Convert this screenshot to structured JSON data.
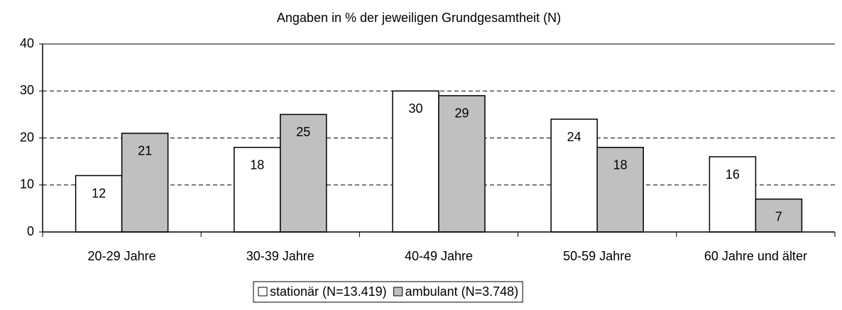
{
  "chart_data": {
    "type": "bar",
    "title": "Angaben in % der jeweiligen Grundgesamtheit (N)",
    "categories": [
      "20-29 Jahre",
      "30-39 Jahre",
      "40-49 Jahre",
      "50-59 Jahre",
      "60 Jahre und älter"
    ],
    "series": [
      {
        "name": "stationär (N=13.419)",
        "color": "#ffffff",
        "values": [
          12,
          18,
          30,
          24,
          16
        ]
      },
      {
        "name": "ambulant (N=3.748)",
        "color": "#c0c0c0",
        "values": [
          21,
          25,
          29,
          18,
          7
        ]
      }
    ],
    "ylim": [
      0,
      40
    ],
    "yticks": [
      0,
      10,
      20,
      30,
      40
    ],
    "grid": true,
    "legend": "bottom"
  }
}
